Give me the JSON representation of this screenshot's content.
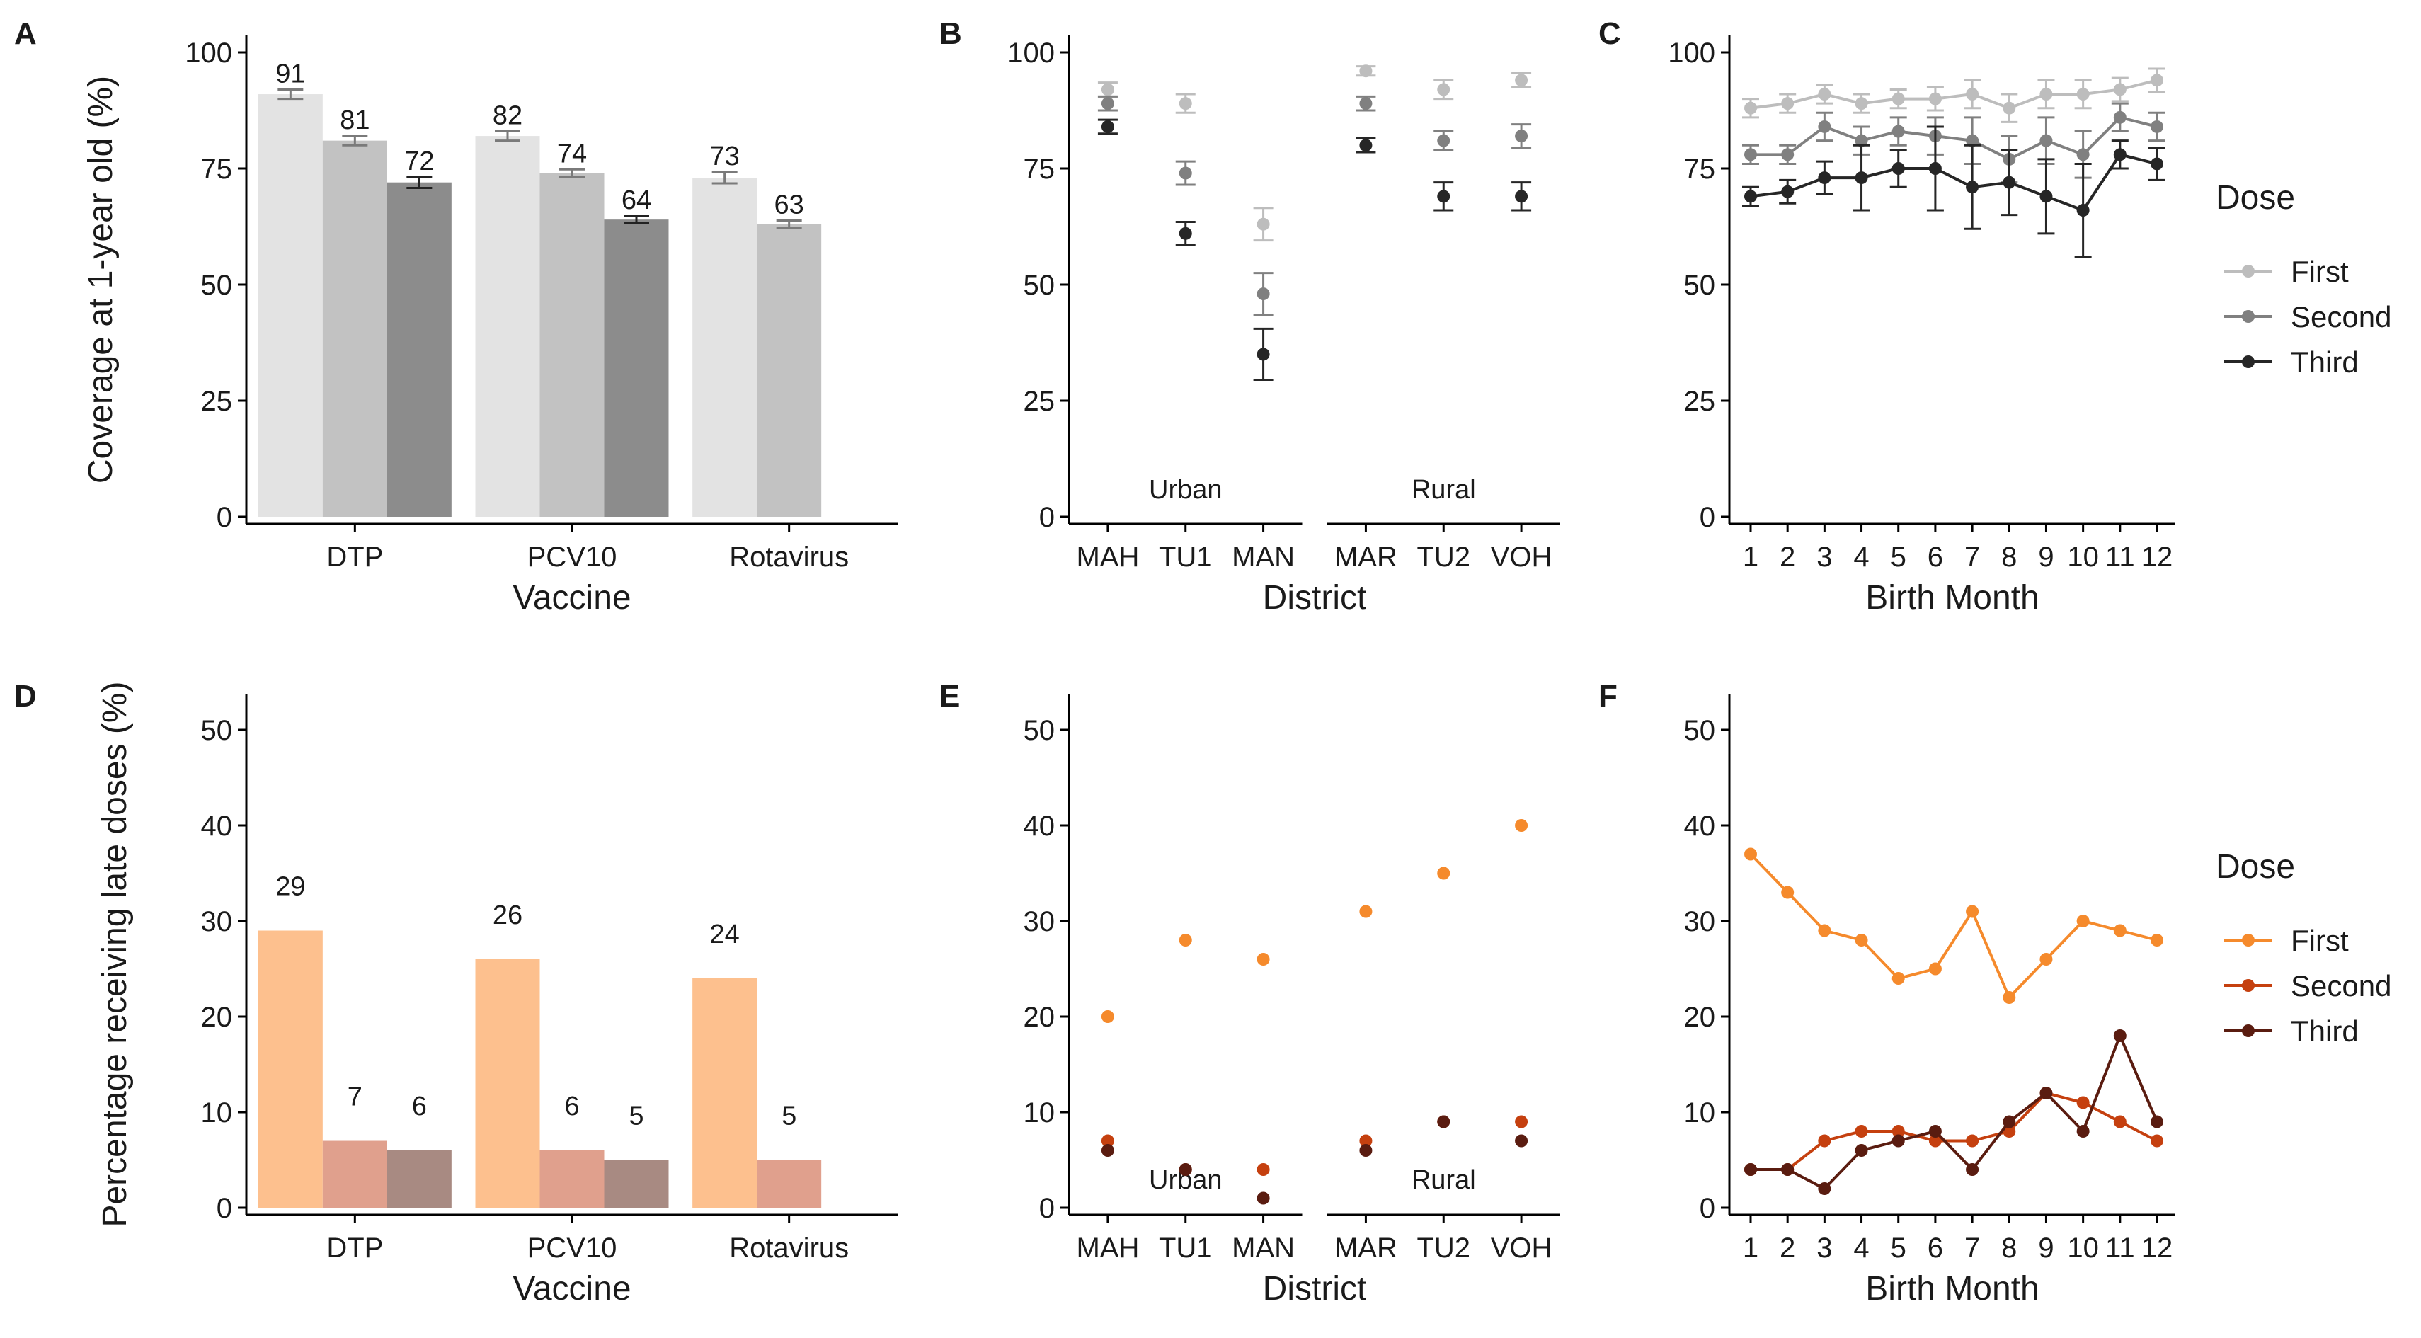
{
  "dose_names": [
    "First",
    "Second",
    "Third"
  ],
  "legend": {
    "title": "Dose"
  },
  "colors": {
    "grey_bars": [
      "#e3e3e3",
      "#c2c2c2",
      "#8c8c8c"
    ],
    "grey_points": [
      "#bdbdbd",
      "#808080",
      "#262626"
    ],
    "orange_bars": [
      "#fdc08e",
      "#e0a08d",
      "#a88a82"
    ],
    "orange_points": [
      "#f58a2c",
      "#c5400f",
      "#5a1c10"
    ],
    "axis": "#000000"
  },
  "chart_data": [
    {
      "panel": "A",
      "type": "bar",
      "xlabel": "Vaccine",
      "ylabel": "Coverage at 1-year old (%)",
      "ylim": [
        0,
        100
      ],
      "yticks": [
        0,
        25,
        50,
        75,
        100
      ],
      "categories": [
        "DTP",
        "PCV10",
        "Rotavirus"
      ],
      "series": [
        {
          "name": "First",
          "values": [
            91,
            82,
            73
          ],
          "err": [
            1,
            1,
            1.2
          ]
        },
        {
          "name": "Second",
          "values": [
            81,
            74,
            63
          ],
          "err": [
            1,
            0.8,
            0.8
          ]
        },
        {
          "name": "Third",
          "values": [
            72,
            64,
            null
          ],
          "err": [
            1.2,
            0.8,
            null
          ]
        }
      ],
      "data_labels": true
    },
    {
      "panel": "B",
      "type": "scatter",
      "xlabel": "District",
      "ylabel": "",
      "ylim": [
        0,
        100
      ],
      "yticks": [
        0,
        25,
        50,
        75,
        100
      ],
      "groups": [
        {
          "label": "Urban",
          "categories": [
            "MAH",
            "TU1",
            "MAN"
          ]
        },
        {
          "label": "Rural",
          "categories": [
            "MAR",
            "TU2",
            "VOH"
          ]
        }
      ],
      "series": [
        {
          "name": "First",
          "values": [
            92,
            89,
            63,
            96,
            92,
            94
          ],
          "err": [
            1.5,
            2,
            3.5,
            1,
            2,
            1.5
          ]
        },
        {
          "name": "Second",
          "values": [
            89,
            74,
            48,
            89,
            81,
            82
          ],
          "err": [
            1.5,
            2.5,
            4.5,
            1.5,
            2,
            2.5
          ]
        },
        {
          "name": "Third",
          "values": [
            84,
            61,
            35,
            80,
            69,
            69
          ],
          "err": [
            1.5,
            2.5,
            5.5,
            1.5,
            3,
            3
          ]
        }
      ]
    },
    {
      "panel": "C",
      "type": "line",
      "xlabel": "Birth Month",
      "ylabel": "",
      "ylim": [
        0,
        100
      ],
      "yticks": [
        0,
        25,
        50,
        75,
        100
      ],
      "x": [
        1,
        2,
        3,
        4,
        5,
        6,
        7,
        8,
        9,
        10,
        11,
        12
      ],
      "series": [
        {
          "name": "First",
          "values": [
            88,
            89,
            91,
            89,
            90,
            90,
            91,
            88,
            91,
            91,
            92,
            94
          ],
          "err": [
            2,
            2,
            2,
            2,
            2,
            2.5,
            3,
            3,
            3,
            3,
            2.5,
            2.5
          ]
        },
        {
          "name": "Second",
          "values": [
            78,
            78,
            84,
            81,
            83,
            82,
            81,
            77,
            81,
            78,
            86,
            84
          ],
          "err": [
            2,
            2,
            3,
            3,
            3,
            4,
            5,
            5,
            5,
            5,
            3,
            3
          ]
        },
        {
          "name": "Third",
          "values": [
            69,
            70,
            73,
            73,
            75,
            75,
            71,
            72,
            69,
            66,
            78,
            76
          ],
          "err": [
            2,
            2.5,
            3.5,
            7,
            4,
            9,
            9,
            7,
            8,
            10,
            3,
            3.5
          ]
        }
      ]
    },
    {
      "panel": "D",
      "type": "bar",
      "xlabel": "Vaccine",
      "ylabel": "Percentage receiving late doses (%)",
      "ylim": [
        0,
        52
      ],
      "yticks": [
        0,
        10,
        20,
        30,
        40,
        50
      ],
      "categories": [
        "DTP",
        "PCV10",
        "Rotavirus"
      ],
      "series": [
        {
          "name": "First",
          "values": [
            29,
            26,
            24
          ]
        },
        {
          "name": "Second",
          "values": [
            7,
            6,
            5
          ]
        },
        {
          "name": "Third",
          "values": [
            6,
            5,
            null
          ]
        }
      ],
      "data_labels": true
    },
    {
      "panel": "E",
      "type": "scatter",
      "xlabel": "District",
      "ylabel": "",
      "ylim": [
        0,
        52
      ],
      "yticks": [
        0,
        10,
        20,
        30,
        40,
        50
      ],
      "groups": [
        {
          "label": "Urban",
          "categories": [
            "MAH",
            "TU1",
            "MAN"
          ]
        },
        {
          "label": "Rural",
          "categories": [
            "MAR",
            "TU2",
            "VOH"
          ]
        }
      ],
      "series": [
        {
          "name": "First",
          "values": [
            20,
            28,
            26,
            31,
            35,
            40
          ]
        },
        {
          "name": "Second",
          "values": [
            7,
            4,
            4,
            7,
            9,
            9
          ]
        },
        {
          "name": "Third",
          "values": [
            6,
            4,
            1,
            6,
            9,
            7
          ]
        }
      ]
    },
    {
      "panel": "F",
      "type": "line",
      "xlabel": "Birth Month",
      "ylabel": "",
      "ylim": [
        0,
        52
      ],
      "yticks": [
        0,
        10,
        20,
        30,
        40,
        50
      ],
      "x": [
        1,
        2,
        3,
        4,
        5,
        6,
        7,
        8,
        9,
        10,
        11,
        12
      ],
      "series": [
        {
          "name": "First",
          "values": [
            37,
            33,
            29,
            28,
            24,
            25,
            31,
            22,
            26,
            30,
            29,
            28
          ]
        },
        {
          "name": "Second",
          "values": [
            4,
            4,
            7,
            8,
            8,
            7,
            7,
            8,
            12,
            11,
            9,
            7
          ]
        },
        {
          "name": "Third",
          "values": [
            4,
            4,
            2,
            6,
            7,
            8,
            4,
            9,
            12,
            8,
            18,
            9
          ]
        }
      ]
    }
  ]
}
